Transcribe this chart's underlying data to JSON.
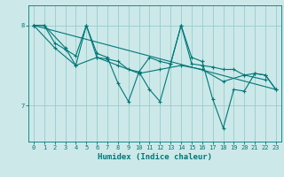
{
  "xlabel": "Humidex (Indice chaleur)",
  "ylabel": "",
  "bg_color": "#cce8e8",
  "line_color": "#007878",
  "grid_color": "#99cccc",
  "xlim": [
    -0.5,
    23.5
  ],
  "ylim": [
    6.55,
    8.25
  ],
  "yticks": [
    7,
    8
  ],
  "xticks": [
    0,
    1,
    2,
    3,
    4,
    5,
    6,
    7,
    8,
    9,
    10,
    11,
    12,
    13,
    14,
    15,
    16,
    17,
    18,
    19,
    20,
    21,
    22,
    23
  ],
  "lines": [
    {
      "x": [
        0,
        1,
        2,
        3,
        4,
        5,
        6,
        7,
        8,
        9,
        10,
        11,
        12,
        13,
        14,
        15,
        16,
        17,
        18,
        19,
        20,
        21,
        22,
        23
      ],
      "y": [
        8.0,
        8.0,
        7.78,
        7.7,
        7.62,
        8.0,
        7.6,
        7.58,
        7.55,
        7.45,
        7.42,
        7.6,
        7.55,
        7.52,
        8.0,
        7.52,
        7.5,
        7.48,
        7.45,
        7.45,
        7.38,
        7.4,
        7.38,
        7.2
      ]
    },
    {
      "x": [
        0,
        1,
        3,
        4,
        5,
        6,
        7,
        8,
        9,
        10,
        11,
        12,
        13,
        14,
        15,
        16,
        17,
        18,
        19,
        20,
        21,
        22,
        23
      ],
      "y": [
        8.0,
        8.0,
        7.72,
        7.5,
        8.0,
        7.65,
        7.6,
        7.28,
        7.05,
        7.42,
        7.2,
        7.05,
        7.52,
        8.0,
        7.6,
        7.55,
        7.08,
        6.72,
        7.2,
        7.18,
        7.4,
        7.38,
        7.2
      ]
    },
    {
      "x": [
        0,
        2,
        4,
        6,
        8,
        10,
        12,
        14,
        16,
        18,
        20,
        22
      ],
      "y": [
        8.0,
        7.72,
        7.5,
        7.6,
        7.5,
        7.4,
        7.45,
        7.5,
        7.45,
        7.3,
        7.38,
        7.32
      ]
    },
    {
      "x": [
        0,
        23
      ],
      "y": [
        8.0,
        7.2
      ]
    }
  ]
}
